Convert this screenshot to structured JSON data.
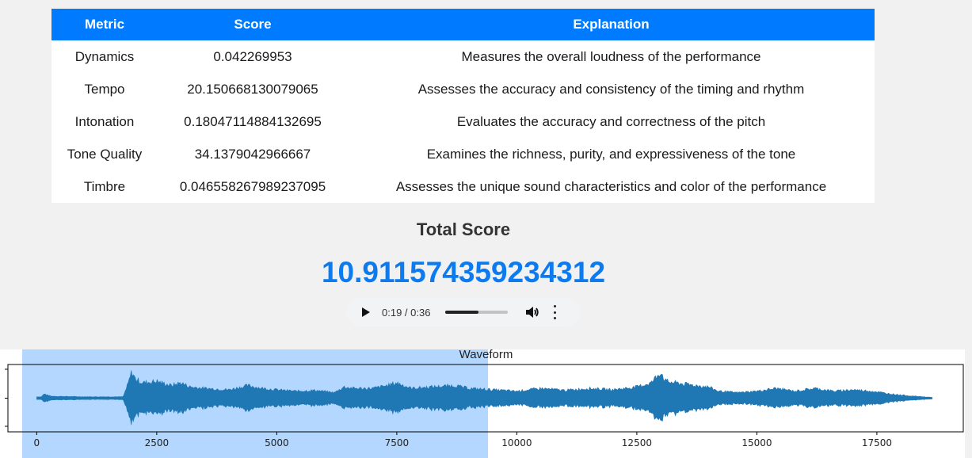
{
  "table": {
    "headers": [
      "Metric",
      "Score",
      "Explanation"
    ],
    "rows": [
      {
        "metric": "Dynamics",
        "score": "0.042269953",
        "explanation": "Measures the overall loudness of the performance"
      },
      {
        "metric": "Tempo",
        "score": "20.150668130079065",
        "explanation": "Assesses the accuracy and consistency of the timing and rhythm"
      },
      {
        "metric": "Intonation",
        "score": "0.18047114884132695",
        "explanation": "Evaluates the accuracy and correctness of the pitch"
      },
      {
        "metric": "Tone Quality",
        "score": "34.1379042966667",
        "explanation": "Examines the richness, purity, and expressiveness of the tone"
      },
      {
        "metric": "Timbre",
        "score": "0.046558267989237095",
        "explanation": "Assesses the unique sound characteristics and color of the performance"
      }
    ]
  },
  "total": {
    "title": "Total Score",
    "value": "10.911574359234312"
  },
  "audio": {
    "time": "0:19 / 0:36",
    "progress_fraction": 0.53,
    "play_icon": "play-icon",
    "volume_icon": "volume-icon",
    "more_icon": "more-options-icon"
  },
  "colors": {
    "header": "#007bff",
    "total_value": "#0d7bf0",
    "waveform": "#1f77b4",
    "selection": "#b3d7ff"
  },
  "chart_data": {
    "type": "area",
    "title": "Waveform",
    "xlabel": "",
    "ylabel": "",
    "xlim": [
      -600,
      19300
    ],
    "xticks": [
      0,
      2500,
      5000,
      7500,
      10000,
      12500,
      15000,
      17500
    ],
    "xtick_labels": [
      "0",
      "2500",
      "5000",
      "7500",
      "10000",
      "12500",
      "15000",
      "17500"
    ],
    "signal_range": [
      0,
      18650
    ],
    "selected_range": [
      -600,
      9400
    ],
    "envelope": [
      [
        0,
        0.05
      ],
      [
        100,
        0.05
      ],
      [
        150,
        0.15
      ],
      [
        300,
        0.07
      ],
      [
        1000,
        0.05
      ],
      [
        1800,
        0.05
      ],
      [
        1900,
        0.5
      ],
      [
        1980,
        0.95
      ],
      [
        2050,
        0.7
      ],
      [
        2200,
        0.55
      ],
      [
        2500,
        0.6
      ],
      [
        2800,
        0.45
      ],
      [
        3000,
        0.55
      ],
      [
        3200,
        0.4
      ],
      [
        3500,
        0.35
      ],
      [
        4000,
        0.3
      ],
      [
        4400,
        0.45
      ],
      [
        4700,
        0.35
      ],
      [
        5000,
        0.3
      ],
      [
        5400,
        0.25
      ],
      [
        5800,
        0.28
      ],
      [
        6200,
        0.2
      ],
      [
        6400,
        0.4
      ],
      [
        6600,
        0.35
      ],
      [
        7000,
        0.35
      ],
      [
        7300,
        0.45
      ],
      [
        7500,
        0.55
      ],
      [
        7800,
        0.35
      ],
      [
        8200,
        0.4
      ],
      [
        8700,
        0.45
      ],
      [
        9000,
        0.35
      ],
      [
        9500,
        0.3
      ],
      [
        10000,
        0.25
      ],
      [
        10500,
        0.35
      ],
      [
        11000,
        0.28
      ],
      [
        11500,
        0.35
      ],
      [
        12000,
        0.3
      ],
      [
        12500,
        0.4
      ],
      [
        12800,
        0.55
      ],
      [
        13000,
        0.95
      ],
      [
        13100,
        0.6
      ],
      [
        13500,
        0.5
      ],
      [
        14000,
        0.4
      ],
      [
        14200,
        0.25
      ],
      [
        14600,
        0.2
      ],
      [
        15000,
        0.25
      ],
      [
        15400,
        0.35
      ],
      [
        15800,
        0.25
      ],
      [
        16200,
        0.35
      ],
      [
        16600,
        0.25
      ],
      [
        17000,
        0.3
      ],
      [
        17400,
        0.25
      ],
      [
        17800,
        0.15
      ],
      [
        18200,
        0.08
      ],
      [
        18650,
        0.03
      ]
    ]
  }
}
